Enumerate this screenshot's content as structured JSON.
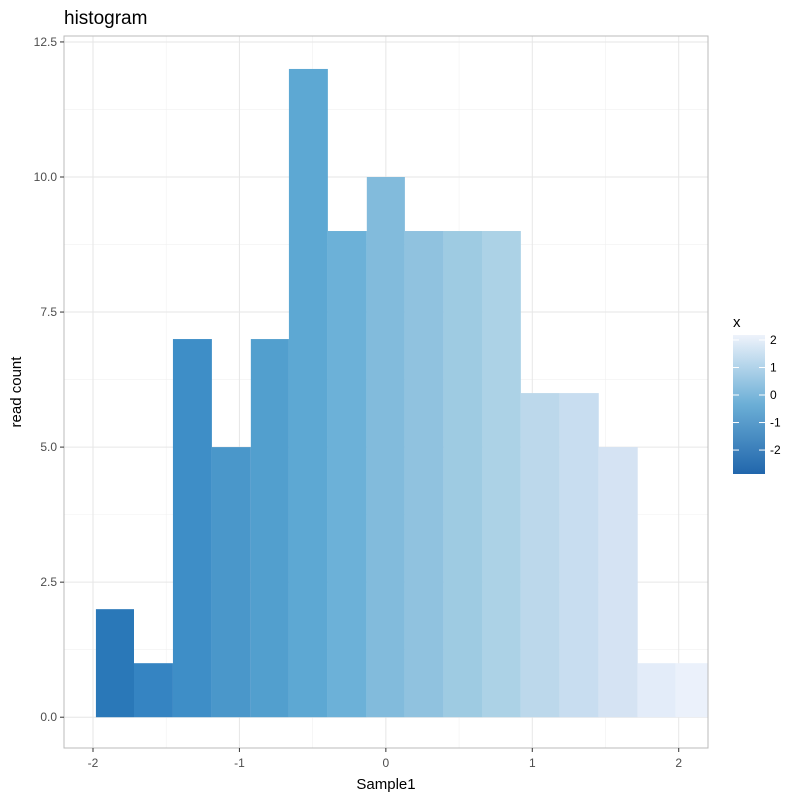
{
  "chart_data": {
    "type": "bar",
    "title": "histogram",
    "xlabel": "Sample1",
    "ylabel": "read count",
    "xlim": [
      -2.198,
      2.2
    ],
    "ylim": [
      -0.57,
      12.61
    ],
    "grid": true,
    "xticks": [
      -2,
      -1,
      0,
      1,
      2
    ],
    "xtick_labels": [
      "-2",
      "-1",
      "0",
      "1",
      "2"
    ],
    "yticks": [
      0,
      2.5,
      5,
      7.5,
      10,
      12.5
    ],
    "ytick_labels": [
      "0.0",
      "2.5",
      "5.0",
      "7.5",
      "10.0",
      "12.5"
    ],
    "bins": [
      {
        "x0": -1.98,
        "x1": -1.72,
        "count": 2,
        "color": "#2a78b8"
      },
      {
        "x0": -1.72,
        "x1": -1.454,
        "count": 1,
        "color": "#3584c2"
      },
      {
        "x0": -1.454,
        "x1": -1.188,
        "count": 7,
        "color": "#3e8ec7"
      },
      {
        "x0": -1.188,
        "x1": -0.922,
        "count": 5,
        "color": "#4a97ca"
      },
      {
        "x0": -0.922,
        "x1": -0.662,
        "count": 7,
        "color": "#529fce"
      },
      {
        "x0": -0.662,
        "x1": -0.396,
        "count": 12,
        "color": "#5da8d3"
      },
      {
        "x0": -0.396,
        "x1": -0.13,
        "count": 9,
        "color": "#6cb1d8"
      },
      {
        "x0": -0.13,
        "x1": 0.13,
        "count": 10,
        "color": "#82bbdc"
      },
      {
        "x0": 0.13,
        "x1": 0.396,
        "count": 9,
        "color": "#90c2df"
      },
      {
        "x0": 0.396,
        "x1": 0.662,
        "count": 9,
        "color": "#9ecbe2"
      },
      {
        "x0": 0.662,
        "x1": 0.922,
        "count": 9,
        "color": "#acd2e6"
      },
      {
        "x0": 0.922,
        "x1": 1.188,
        "count": 6,
        "color": "#bcd8eb"
      },
      {
        "x0": 1.188,
        "x1": 1.454,
        "count": 6,
        "color": "#c8ddf0"
      },
      {
        "x0": 1.454,
        "x1": 1.72,
        "count": 5,
        "color": "#d5e3f3"
      },
      {
        "x0": 1.72,
        "x1": 1.98,
        "count": 1,
        "color": "#e3ecf9"
      },
      {
        "x0": 1.98,
        "x1": 2.2,
        "count": 1,
        "color": "#ebf1fb"
      }
    ],
    "legend": {
      "title": "x",
      "placement": "right",
      "range": [
        -2.87,
        2.18
      ],
      "ticks": [
        2,
        1,
        0,
        -1,
        -2
      ],
      "tick_labels": [
        "2",
        "1",
        "0",
        "-1",
        "-2"
      ],
      "color_low": "#2166ac",
      "color_high": "#eef3fb"
    }
  }
}
